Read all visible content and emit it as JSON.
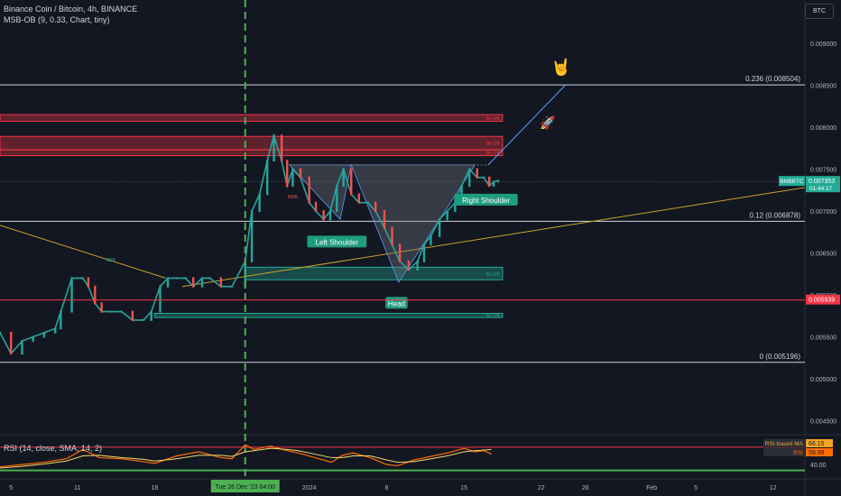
{
  "header": {
    "title": "Binance Coin / Bitcoin, 4h, BINANCE",
    "indicator": "MSB-OB (9, 0.33, Chart, tiny)",
    "currency": "BTC"
  },
  "rsi_legend": "RSI (14, close, SMA, 14, 2)",
  "chart_data": {
    "type": "line",
    "symbol": "BNBBTC",
    "price_axis": {
      "range": [
        0.0044,
        0.0095
      ],
      "ticks": [
        "0.009000",
        "0.008500",
        "0.008000",
        "0.007500",
        "0.007000",
        "0.006500",
        "0.006000",
        "0.005500",
        "0.005000",
        "0.004500"
      ]
    },
    "x_axis_labels": [
      {
        "label": "5",
        "day": 5
      },
      {
        "label": "11",
        "day": 11
      },
      {
        "label": "18",
        "day": 18
      },
      {
        "label": "2024",
        "day": 32
      },
      {
        "label": "8",
        "day": 39
      },
      {
        "label": "15",
        "day": 46
      },
      {
        "label": "22",
        "day": 53
      },
      {
        "label": "26",
        "day": 57
      },
      {
        "label": "Feb",
        "day": 63
      },
      {
        "label": "5",
        "day": 67
      },
      {
        "label": "12",
        "day": 74
      }
    ],
    "crosshair": {
      "label": "Tue 26 Dec '23   04:00",
      "day": 26.2
    },
    "price_series": {
      "days": [
        4.0,
        5.0,
        6.0,
        7.0,
        8.0,
        9.0,
        9.5,
        10.5,
        11.5,
        12.0,
        12.6,
        13.2,
        14.0,
        15.0,
        16.0,
        17.0,
        17.7,
        18.5,
        19.2,
        20.0,
        20.8,
        21.5,
        22.3,
        23.0,
        24.0,
        25.0,
        26.2,
        26.8,
        27.5,
        28.2,
        28.8,
        29.5,
        30.0,
        30.5,
        31.2,
        32.0,
        32.6,
        33.3,
        33.9,
        34.5,
        35.1,
        35.8,
        36.5,
        37.3,
        38.0,
        38.8,
        39.5,
        40.2,
        41.0,
        41.8,
        42.4,
        43.0,
        43.8,
        44.5,
        45.2,
        45.8,
        46.5,
        47.2,
        47.8,
        48.3,
        48.7,
        49.1
      ],
      "values": [
        0.00555,
        0.0053,
        0.00545,
        0.0055,
        0.00555,
        0.0056,
        0.0058,
        0.0062,
        0.0062,
        0.0061,
        0.0059,
        0.0058,
        0.0058,
        0.0058,
        0.0057,
        0.0057,
        0.0058,
        0.0061,
        0.0062,
        0.0062,
        0.0062,
        0.0061,
        0.0062,
        0.0062,
        0.0061,
        0.0061,
        0.0064,
        0.007,
        0.0072,
        0.0076,
        0.0079,
        0.0076,
        0.0073,
        0.0075,
        0.0074,
        0.0071,
        0.007,
        0.0069,
        0.007,
        0.0073,
        0.0075,
        0.0072,
        0.0071,
        0.0071,
        0.007,
        0.0068,
        0.0066,
        0.0064,
        0.0063,
        0.0064,
        0.0066,
        0.0067,
        0.0069,
        0.007,
        0.0071,
        0.0073,
        0.0075,
        0.0074,
        0.0074,
        0.0073,
        0.00735,
        0.00736
      ]
    },
    "horizontal_levels": [
      {
        "label": "0.236 (0.008504)",
        "value": 0.008504
      },
      {
        "label": "0.12 (0.006878)",
        "value": 0.006878
      },
      {
        "label": "0 (0.005196)",
        "value": 0.005196
      }
    ],
    "zones": [
      {
        "label": "Be-OB",
        "from_day": 0,
        "to_day": 49.5,
        "top": 0.00815,
        "bottom": 0.00807,
        "color": "#f23645"
      },
      {
        "label": "Be-OB",
        "from_day": 0,
        "to_day": 49.5,
        "top": 0.00789,
        "bottom": 0.00773,
        "color": "#f23645"
      },
      {
        "label": "Be-OB",
        "from_day": 0,
        "to_day": 49.5,
        "top": 0.00773,
        "bottom": 0.00766,
        "color": "#f23645"
      },
      {
        "label": "Bu-OB",
        "from_day": 26.2,
        "to_day": 49.5,
        "top": 0.00633,
        "bottom": 0.00618,
        "color": "#22ab94"
      },
      {
        "label": "Bu-OB",
        "from_day": 18.0,
        "to_day": 49.5,
        "top": 0.00578,
        "bottom": 0.00573,
        "color": "#22ab94"
      }
    ],
    "annotations": [
      {
        "label": "Left Shoulder",
        "day": 34.5,
        "value": 0.00663
      },
      {
        "label": "Head",
        "day": 39.9,
        "value": 0.0059
      },
      {
        "label": "Right Shoulder",
        "day": 48.0,
        "value": 0.00713
      }
    ],
    "msb_labels": [
      {
        "label": "MSB",
        "day": 14.0,
        "value": 0.0064
      },
      {
        "label": "MSB",
        "day": 30.5,
        "value": 0.00715
      }
    ],
    "current_price": {
      "label": "BNBBTC",
      "value": "0.007353",
      "countdown": "01:44:17",
      "color": "#22ab94"
    },
    "red_price": {
      "value": "0.005939",
      "color": "#f23645"
    },
    "rsi": {
      "range": [
        20,
        90
      ],
      "upper_band": 70,
      "lower_band": 30,
      "tick": "40.00",
      "labels": [
        {
          "name": "RSI-based MA",
          "value": "66.15",
          "color": "#f5a623"
        },
        {
          "name": "RSI",
          "value": "59.98",
          "color": "#ff6d00"
        }
      ],
      "days": [
        4,
        6,
        8,
        10,
        11.5,
        13,
        15,
        17,
        18,
        20,
        22,
        24,
        25,
        26.2,
        27,
        28.5,
        30,
        31,
        32.5,
        34,
        35,
        36,
        37.5,
        39,
        40,
        41.5,
        43,
        44.5,
        46,
        47,
        47.8,
        48.5
      ],
      "values": [
        36,
        40,
        44,
        50,
        66,
        52,
        50,
        45,
        42,
        55,
        62,
        52,
        50,
        74,
        66,
        72,
        64,
        60,
        52,
        44,
        56,
        60,
        52,
        40,
        38,
        48,
        54,
        60,
        68,
        62,
        64,
        58
      ],
      "ma_values": [
        34,
        37,
        41,
        46,
        55,
        56,
        52,
        49,
        46,
        50,
        56,
        56,
        54,
        62,
        64,
        68,
        66,
        64,
        58,
        52,
        52,
        55,
        55,
        48,
        44,
        45,
        50,
        55,
        62,
        64,
        65,
        66
      ]
    }
  }
}
